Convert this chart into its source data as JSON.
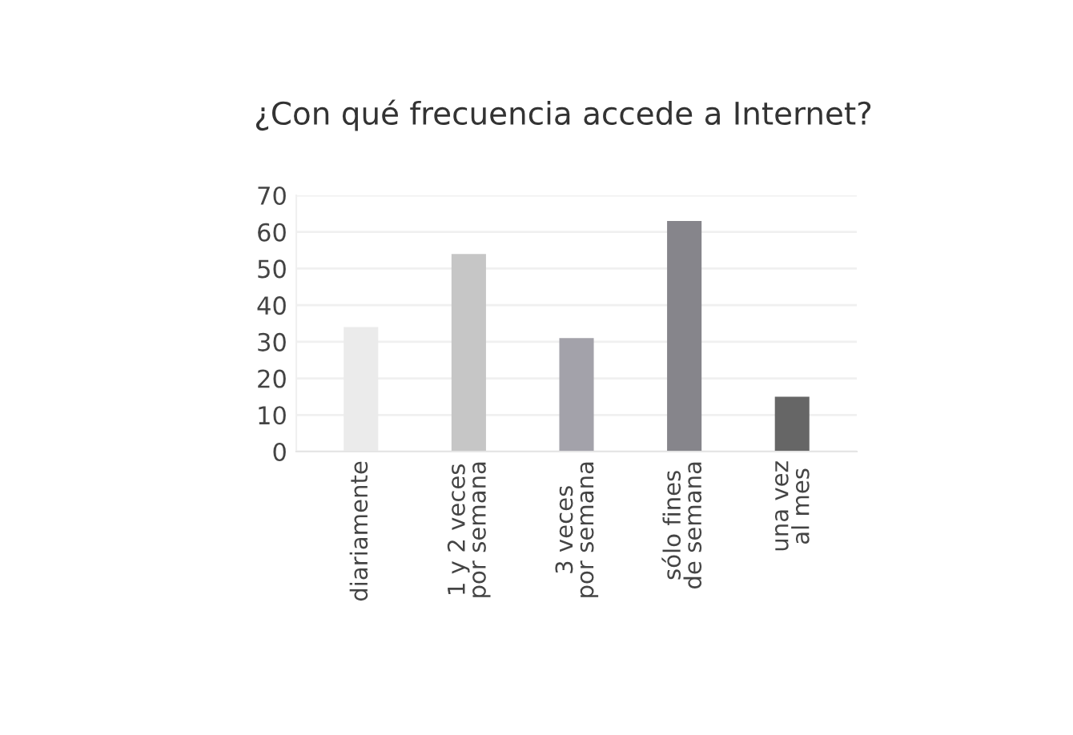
{
  "chart_data": {
    "type": "bar",
    "title": "¿Con qué frecuencia accede a Internet?",
    "categories": [
      "diariamente",
      "1 y 2 veces\npor semana",
      "3 veces\npor semana",
      "sólo fines\nde semana",
      "una vez\nal mes"
    ],
    "values": [
      34,
      54,
      31,
      63,
      15
    ],
    "colors": [
      "#ebebeb",
      "#c6c6c6",
      "#a3a2aa",
      "#86858b",
      "#666666"
    ],
    "ylim": [
      0,
      70
    ],
    "yticks": [
      0,
      10,
      20,
      30,
      40,
      50,
      60,
      70
    ],
    "grid": "y"
  }
}
